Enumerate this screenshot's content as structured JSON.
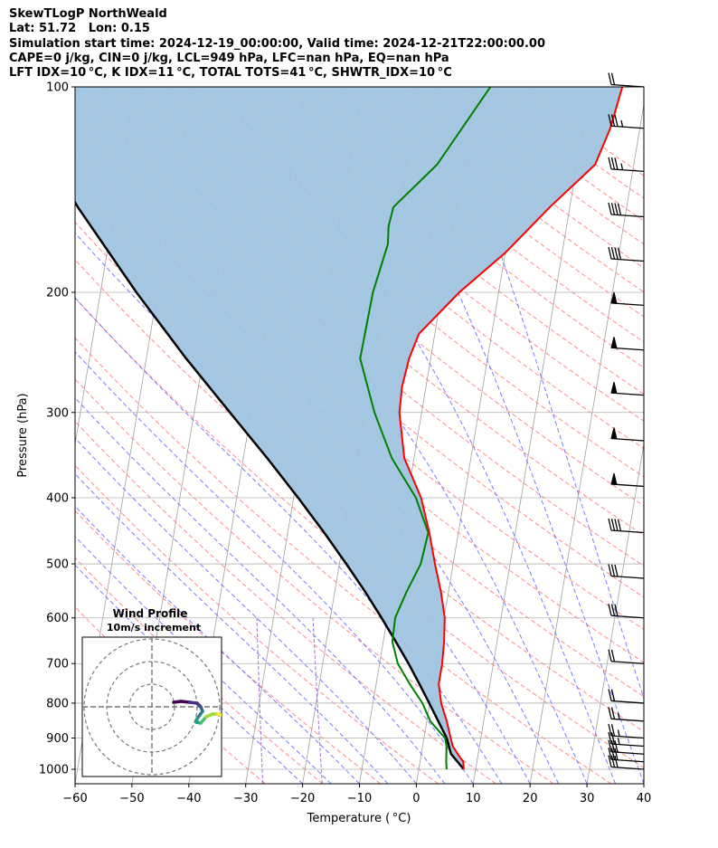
{
  "header": {
    "line1": "SkewTLogP NorthWeald",
    "line2": "Lat: 51.72   Lon: 0.15",
    "line3": "Simulation start time: 2024-12-19_00:00:00, Valid time: 2024-12-21T22:00:00.00",
    "line4": "CAPE=0 j/kg, CIN=0 j/kg, LCL=949 hPa, LFC=nan hPa, EQ=nan hPa",
    "line5": "LFT IDX=10 °C, K IDX=11 °C, TOTAL TOTS=41 °C, SHWTR_IDX=10 °C"
  },
  "axes": {
    "xlabel": "Temperature ( °C)",
    "ylabel": "Pressure (hPa)"
  },
  "inset": {
    "title": "Wind Profile",
    "subtitle": "10m/s increment"
  },
  "colors": {
    "temperature": "#ff0000",
    "dewpoint": "#008000",
    "parcel": "#000000",
    "cape_fill": "#a0c4e0",
    "dry_adiabats": "#ff6666",
    "moist_adiabats": "#5a5aff",
    "mixing_ratio": "#9966cc",
    "isotherms": "#a0a0a0"
  },
  "chart_data": {
    "type": "line",
    "title": "SkewTLogP NorthWeald",
    "xlabel": "Temperature ( °C)",
    "ylabel": "Pressure (hPa)",
    "xlim": [
      -60,
      40
    ],
    "ylim": [
      1050,
      100
    ],
    "y_scale": "log",
    "x_ticks": [
      "−60",
      "−50",
      "−40",
      "−30",
      "−20",
      "−10",
      "0",
      "10",
      "20",
      "30",
      "40"
    ],
    "x_tick_values": [
      -60,
      -50,
      -40,
      -30,
      -20,
      -10,
      0,
      10,
      20,
      30,
      40
    ],
    "y_ticks": [
      "100",
      "200",
      "300",
      "400",
      "500",
      "600",
      "700",
      "800",
      "900",
      "1000"
    ],
    "y_tick_values": [
      100,
      200,
      300,
      400,
      500,
      600,
      700,
      800,
      900,
      1000
    ],
    "grid": true,
    "series": [
      {
        "kind": "temperature",
        "points": [
          [
            1000,
            7.9
          ],
          [
            975,
            7.6
          ],
          [
            950,
            6.4
          ],
          [
            925,
            5.3
          ],
          [
            900,
            4.7
          ],
          [
            850,
            3.5
          ],
          [
            800,
            2.0
          ],
          [
            750,
            1.0
          ],
          [
            700,
            1.0
          ],
          [
            650,
            0.7
          ],
          [
            600,
            0.1
          ],
          [
            550,
            -1.3
          ],
          [
            500,
            -3.2
          ],
          [
            450,
            -5.1
          ],
          [
            400,
            -7.6
          ],
          [
            350,
            -11.7
          ],
          [
            300,
            -13.9
          ],
          [
            275,
            -14.2
          ],
          [
            250,
            -13.8
          ],
          [
            230,
            -12.8
          ],
          [
            200,
            -6.9
          ],
          [
            175,
            0.0
          ],
          [
            150,
            6.5
          ],
          [
            130,
            13.2
          ],
          [
            115,
            14.8
          ],
          [
            100,
            15.7
          ]
        ]
      },
      {
        "kind": "dewpoint",
        "points": [
          [
            1000,
            4.9
          ],
          [
            975,
            4.6
          ],
          [
            950,
            4.4
          ],
          [
            925,
            4.2
          ],
          [
            900,
            3.7
          ],
          [
            850,
            0.6
          ],
          [
            800,
            -1.3
          ],
          [
            750,
            -4.1
          ],
          [
            700,
            -6.8
          ],
          [
            650,
            -8.4
          ],
          [
            600,
            -8.6
          ],
          [
            550,
            -7.4
          ],
          [
            500,
            -5.7
          ],
          [
            450,
            -5.3
          ],
          [
            400,
            -8.5
          ],
          [
            350,
            -13.9
          ],
          [
            300,
            -18.3
          ],
          [
            250,
            -22.4
          ],
          [
            200,
            -22.1
          ],
          [
            170,
            -20.9
          ],
          [
            160,
            -21.3
          ],
          [
            150,
            -21.0
          ],
          [
            130,
            -14.6
          ],
          [
            100,
            -7.5
          ]
        ]
      },
      {
        "kind": "parcel",
        "points": [
          [
            1000,
            7.9
          ],
          [
            949,
            5.2
          ],
          [
            900,
            4.0
          ],
          [
            850,
            2.0
          ],
          [
            800,
            -0.1
          ],
          [
            750,
            -2.4
          ],
          [
            700,
            -4.9
          ],
          [
            650,
            -7.8
          ],
          [
            600,
            -11.0
          ],
          [
            550,
            -14.6
          ],
          [
            500,
            -18.8
          ],
          [
            450,
            -23.6
          ],
          [
            400,
            -29.2
          ],
          [
            350,
            -35.8
          ],
          [
            300,
            -43.7
          ],
          [
            250,
            -53.0
          ],
          [
            200,
            -63.7
          ],
          [
            150,
            -76.5
          ],
          [
            100,
            -92.5
          ]
        ]
      }
    ],
    "wind_barbs": [
      {
        "p": 1000,
        "barbs": "1 pennant-free, 3 full"
      },
      {
        "p": 975,
        "barbs": "3 full"
      },
      {
        "p": 950,
        "barbs": "3 full"
      },
      {
        "p": 925,
        "barbs": "2 full, 1 half"
      },
      {
        "p": 900,
        "barbs": "2 full, 1 half"
      },
      {
        "p": 850,
        "barbs": "2 full, 1 half"
      },
      {
        "p": 800,
        "barbs": "2 full"
      },
      {
        "p": 700,
        "barbs": "2 full"
      },
      {
        "p": 600,
        "barbs": "3 full"
      },
      {
        "p": 525,
        "barbs": "3 full"
      },
      {
        "p": 450,
        "barbs": "4 full"
      },
      {
        "p": 385,
        "barbs": "1 pennant"
      },
      {
        "p": 330,
        "barbs": "1 pennant"
      },
      {
        "p": 283,
        "barbs": "1 pennant"
      },
      {
        "p": 243,
        "barbs": "1 pennant"
      },
      {
        "p": 209,
        "barbs": "1 pennant"
      },
      {
        "p": 180,
        "barbs": "4 full"
      },
      {
        "p": 155,
        "barbs": "4 full"
      },
      {
        "p": 133,
        "barbs": "3 full, 1 half"
      },
      {
        "p": 115,
        "barbs": "3 full, 1 half"
      },
      {
        "p": 100,
        "barbs": "2 full"
      }
    ]
  }
}
